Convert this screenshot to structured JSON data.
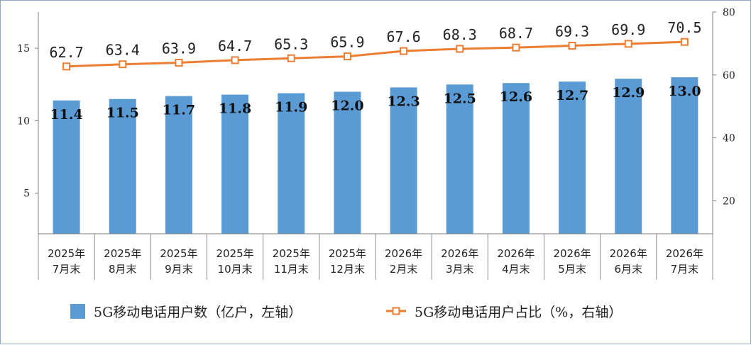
{
  "chart_data": {
    "type": "bar",
    "categories": [
      [
        "2025年",
        "7月末"
      ],
      [
        "2025年",
        "8月末"
      ],
      [
        "2025年",
        "9月末"
      ],
      [
        "2025年",
        "10月末"
      ],
      [
        "2025年",
        "11月末"
      ],
      [
        "2025年",
        "12月末"
      ],
      [
        "2026年",
        "2月末"
      ],
      [
        "2026年",
        "3月末"
      ],
      [
        "2026年",
        "4月末"
      ],
      [
        "2026年",
        "5月末"
      ],
      [
        "2026年",
        "6月末"
      ],
      [
        "2026年",
        "7月末"
      ]
    ],
    "series": [
      {
        "name": "5G移动电话用户数（亿户，左轴）",
        "type": "bar",
        "axis": "left",
        "color": "#5b9bd5",
        "values": [
          11.4,
          11.5,
          11.7,
          11.8,
          11.9,
          12.0,
          12.3,
          12.5,
          12.6,
          12.7,
          12.9,
          13.0
        ],
        "labels": [
          "11.4",
          "11.5",
          "11.7",
          "11.8",
          "11.9",
          "12.0",
          "12.3",
          "12.5",
          "12.6",
          "12.7",
          "12.9",
          "13.0"
        ]
      },
      {
        "name": "5G移动电话用户占比（%，右轴）",
        "type": "line",
        "axis": "right",
        "color": "#ed7d31",
        "values": [
          62.7,
          63.4,
          63.9,
          64.7,
          65.3,
          65.9,
          67.6,
          68.3,
          68.7,
          69.3,
          69.9,
          70.5
        ],
        "labels": [
          "62.7",
          "63.4",
          "63.9",
          "64.7",
          "65.3",
          "65.9",
          "67.6",
          "68.3",
          "68.7",
          "69.3",
          "69.9",
          "70.5"
        ]
      }
    ],
    "y_left": {
      "ylim": [
        2.2,
        17.5
      ],
      "ticks": [
        5,
        10,
        15
      ],
      "tick_labels": [
        "5",
        "10",
        "15"
      ]
    },
    "y_right": {
      "ylim": [
        9.5,
        80
      ],
      "ticks": [
        20,
        40,
        60,
        80
      ],
      "tick_labels": [
        "20",
        "40",
        "60",
        "80"
      ]
    },
    "legend_placement": "bottom",
    "grid": false,
    "title": "",
    "xlabel": "",
    "ylabel": ""
  }
}
